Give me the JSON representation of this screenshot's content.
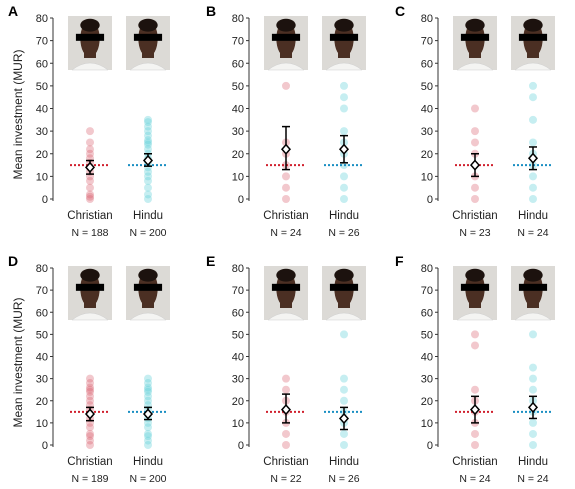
{
  "figure": {
    "ylabel": "Mean investment (MUR)",
    "colors": {
      "christian": "#d9606f",
      "christian_light": "#f2b8c0",
      "hindu": "#5ccfd8",
      "hindu_light": "#bfeef2",
      "christian_line": "#d0202e",
      "hindu_line": "#1a8fc2"
    },
    "icons": {
      "photo": "face-photo-icon"
    }
  },
  "chart_data": [
    {
      "panel": "A",
      "type": "scatter",
      "categories": [
        "Christian",
        "Hindu"
      ],
      "n_labels": [
        "N = 188",
        "N = 200"
      ],
      "ylim": [
        0,
        80
      ],
      "yticks": [
        "0",
        "10",
        "20",
        "30",
        "40",
        "50",
        "60",
        "70",
        "80"
      ],
      "ylabel": "Mean investment (MUR)",
      "reference_line": 15,
      "series": [
        {
          "category": "Christian",
          "mean": 14,
          "ci": [
            11,
            17
          ],
          "points": [
            0,
            1,
            2,
            5,
            8,
            10,
            12,
            14,
            16,
            18,
            20,
            22,
            25,
            30
          ]
        },
        {
          "category": "Hindu",
          "mean": 17,
          "ci": [
            14.5,
            20
          ],
          "points": [
            0,
            2,
            5,
            8,
            10,
            12,
            14,
            16,
            18,
            20,
            22,
            24,
            25,
            26,
            28,
            30,
            32,
            34,
            35
          ]
        }
      ]
    },
    {
      "panel": "B",
      "type": "scatter",
      "categories": [
        "Christian",
        "Hindu"
      ],
      "n_labels": [
        "N = 24",
        "N = 26"
      ],
      "ylim": [
        0,
        80
      ],
      "yticks": [
        "0",
        "10",
        "20",
        "30",
        "40",
        "50",
        "60",
        "70",
        "80"
      ],
      "ylabel": "",
      "reference_line": 15,
      "series": [
        {
          "category": "Christian",
          "mean": 22,
          "ci": [
            13,
            32
          ],
          "points": [
            0,
            5,
            10,
            15,
            20,
            25,
            50
          ]
        },
        {
          "category": "Hindu",
          "mean": 22,
          "ci": [
            16,
            28
          ],
          "points": [
            0,
            5,
            10,
            15,
            20,
            25,
            30,
            40,
            45,
            50
          ]
        }
      ]
    },
    {
      "panel": "C",
      "type": "scatter",
      "categories": [
        "Christian",
        "Hindu"
      ],
      "n_labels": [
        "N = 23",
        "N = 24"
      ],
      "ylim": [
        0,
        80
      ],
      "yticks": [
        "0",
        "10",
        "20",
        "30",
        "40",
        "50",
        "60",
        "70",
        "80"
      ],
      "ylabel": "",
      "reference_line": 15,
      "series": [
        {
          "category": "Christian",
          "mean": 15,
          "ci": [
            10,
            20
          ],
          "points": [
            0,
            5,
            10,
            15,
            20,
            25,
            30,
            40
          ]
        },
        {
          "category": "Hindu",
          "mean": 18,
          "ci": [
            13,
            23
          ],
          "points": [
            0,
            5,
            10,
            15,
            20,
            25,
            35,
            45,
            50
          ]
        }
      ]
    },
    {
      "panel": "D",
      "type": "scatter",
      "categories": [
        "Christian",
        "Hindu"
      ],
      "n_labels": [
        "N = 189",
        "N = 200"
      ],
      "ylim": [
        0,
        80
      ],
      "yticks": [
        "0",
        "10",
        "20",
        "30",
        "40",
        "50",
        "60",
        "70",
        "80"
      ],
      "ylabel": "Mean investment (MUR)",
      "reference_line": 15,
      "series": [
        {
          "category": "Christian",
          "mean": 14,
          "ci": [
            11,
            17
          ],
          "points": [
            0,
            2,
            4,
            5,
            8,
            10,
            12,
            14,
            16,
            18,
            20,
            22,
            24,
            25,
            26,
            28,
            30
          ]
        },
        {
          "category": "Hindu",
          "mean": 14,
          "ci": [
            11.5,
            17
          ],
          "points": [
            0,
            2,
            4,
            5,
            8,
            10,
            12,
            14,
            16,
            18,
            20,
            22,
            24,
            25,
            26,
            28,
            30
          ]
        }
      ]
    },
    {
      "panel": "E",
      "type": "scatter",
      "categories": [
        "Christian",
        "Hindu"
      ],
      "n_labels": [
        "N = 22",
        "N = 26"
      ],
      "ylim": [
        0,
        80
      ],
      "yticks": [
        "0",
        "10",
        "20",
        "30",
        "40",
        "50",
        "60",
        "70",
        "80"
      ],
      "ylabel": "",
      "reference_line": 15,
      "series": [
        {
          "category": "Christian",
          "mean": 16,
          "ci": [
            10,
            23
          ],
          "points": [
            0,
            5,
            10,
            15,
            20,
            25,
            30
          ]
        },
        {
          "category": "Hindu",
          "mean": 12,
          "ci": [
            7,
            17
          ],
          "points": [
            0,
            5,
            10,
            15,
            20,
            25,
            30,
            50
          ]
        }
      ]
    },
    {
      "panel": "F",
      "type": "scatter",
      "categories": [
        "Christian",
        "Hindu"
      ],
      "n_labels": [
        "N = 24",
        "N = 24"
      ],
      "ylim": [
        0,
        80
      ],
      "yticks": [
        "0",
        "10",
        "20",
        "30",
        "40",
        "50",
        "60",
        "70",
        "80"
      ],
      "ylabel": "",
      "reference_line": 15,
      "series": [
        {
          "category": "Christian",
          "mean": 16,
          "ci": [
            10,
            22
          ],
          "points": [
            0,
            5,
            10,
            15,
            20,
            25,
            45,
            50
          ]
        },
        {
          "category": "Hindu",
          "mean": 17,
          "ci": [
            12,
            22
          ],
          "points": [
            0,
            5,
            10,
            15,
            20,
            25,
            30,
            35,
            50
          ]
        }
      ]
    }
  ]
}
